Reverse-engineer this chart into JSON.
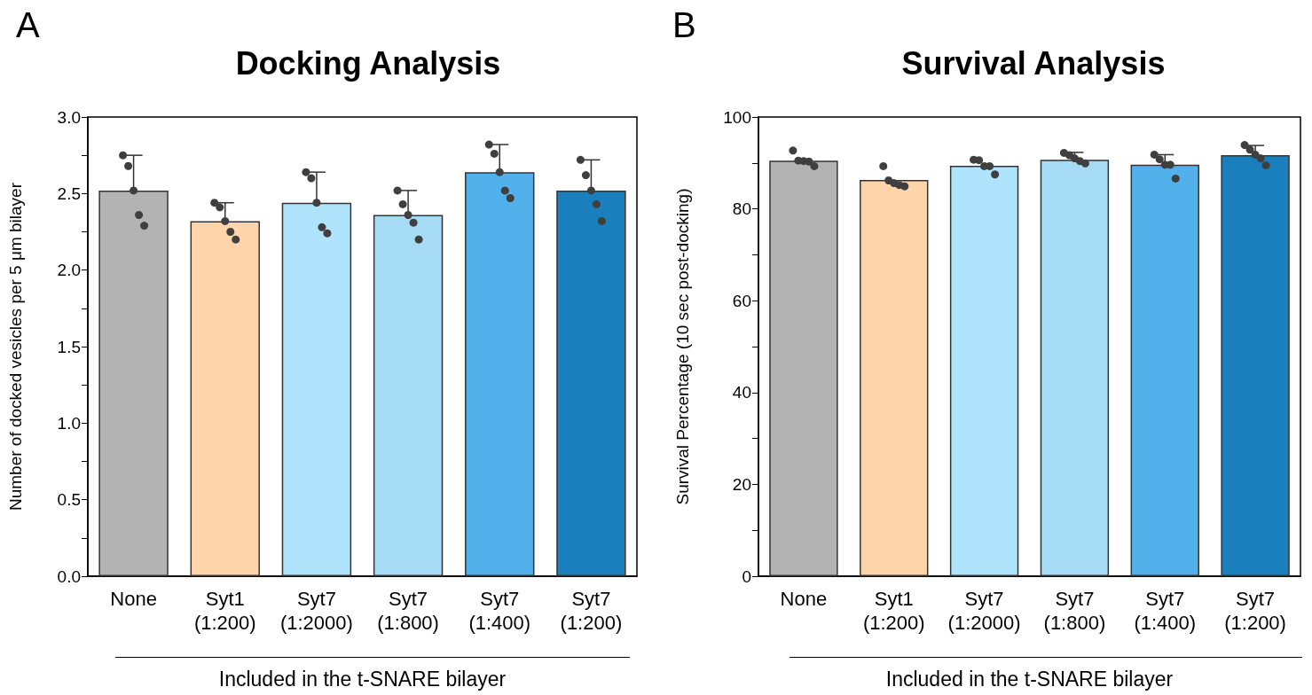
{
  "chart_data": [
    {
      "type": "bar",
      "title": "Docking Analysis",
      "annotations": [
        "A"
      ],
      "xlabel": "Included in the t-SNARE bilayer",
      "ylabel": "Number of docked vesicles per 5 μm bilayer",
      "categories": [
        "None",
        "Syt1\n(1:200)",
        "Syt7\n(1:2000)",
        "Syt7\n(1:800)",
        "Syt7\n(1:400)",
        "Syt7\n(1:200)"
      ],
      "ylim": [
        0,
        3.0
      ],
      "yticks": [
        {
          "value": 0,
          "label": "0.0"
        },
        {
          "value": 0.25,
          "label": null
        },
        {
          "value": 0.5,
          "label": "0.5"
        },
        {
          "value": 0.75,
          "label": null
        },
        {
          "value": 1,
          "label": "1.0"
        },
        {
          "value": 1.25,
          "label": null
        },
        {
          "value": 1.5,
          "label": "1.5"
        },
        {
          "value": 1.75,
          "label": null
        },
        {
          "value": 2,
          "label": "2.0"
        },
        {
          "value": 2.25,
          "label": null
        },
        {
          "value": 2.5,
          "label": "2.5"
        },
        {
          "value": 2.75,
          "label": null
        },
        {
          "value": 3,
          "label": "3.0"
        }
      ],
      "grid": false,
      "series": [
        {
          "colors": [
            "#b3b3b3",
            "#fed5ab",
            "#afe4fc",
            "#a5dbf5",
            "#52b1ea",
            "#1a80bd"
          ],
          "values": [
            2.52,
            2.32,
            2.44,
            2.36,
            2.64,
            2.52
          ],
          "errors": [
            [
              2.52,
              2.75
            ],
            [
              2.32,
              2.44
            ],
            [
              2.44,
              2.64
            ],
            [
              2.36,
              2.52
            ],
            [
              2.64,
              2.82
            ],
            [
              2.52,
              2.72
            ]
          ]
        },
        {
          "type": "scatter",
          "color": "#3f3f3f",
          "marker": "circle",
          "x": [
            "None",
            "None",
            "None",
            "None",
            "None",
            "Syt1\n(1:200)",
            "Syt1\n(1:200)",
            "Syt1\n(1:200)",
            "Syt1\n(1:200)",
            "Syt1\n(1:200)",
            "Syt7\n(1:2000)",
            "Syt7\n(1:2000)",
            "Syt7\n(1:2000)",
            "Syt7\n(1:2000)",
            "Syt7\n(1:2000)",
            "Syt7\n(1:800)",
            "Syt7\n(1:800)",
            "Syt7\n(1:800)",
            "Syt7\n(1:800)",
            "Syt7\n(1:800)",
            "Syt7\n(1:400)",
            "Syt7\n(1:400)",
            "Syt7\n(1:400)",
            "Syt7\n(1:400)",
            "Syt7\n(1:400)",
            "Syt7\n(1:200)",
            "Syt7\n(1:200)",
            "Syt7\n(1:200)",
            "Syt7\n(1:200)",
            "Syt7\n(1:200)"
          ],
          "values": [
            2.75,
            2.68,
            2.52,
            2.36,
            2.29,
            2.44,
            2.41,
            2.32,
            2.25,
            2.2,
            2.64,
            2.6,
            2.44,
            2.28,
            2.24,
            2.52,
            2.43,
            2.36,
            2.31,
            2.2,
            2.82,
            2.76,
            2.64,
            2.52,
            2.47,
            2.72,
            2.62,
            2.52,
            2.43,
            2.32
          ]
        }
      ]
    },
    {
      "type": "bar",
      "title": "Survival Analysis",
      "annotations": [
        "B"
      ],
      "xlabel": "Included in the t-SNARE bilayer",
      "ylabel": "Survival Percentage (10 sec post-docking)",
      "categories": [
        "None",
        "Syt1\n(1:200)",
        "Syt7\n(1:2000)",
        "Syt7\n(1:800)",
        "Syt7\n(1:400)",
        "Syt7\n(1:200)"
      ],
      "ylim": [
        0,
        100
      ],
      "yticks": [
        0,
        {
          "value": 10,
          "label": null
        },
        20,
        {
          "value": 30,
          "label": null
        },
        40,
        {
          "value": 50,
          "label": null
        },
        60,
        {
          "value": 70,
          "label": null
        },
        80,
        {
          "value": 90,
          "label": null
        },
        100
      ],
      "grid": false,
      "series": [
        {
          "colors": [
            "#b3b3b3",
            "#fed5ab",
            "#afe4fc",
            "#a5dbf5",
            "#52b1ea",
            "#1a80bd"
          ],
          "values": [
            90.5,
            86.3,
            89.4,
            90.7,
            89.6,
            91.7
          ],
          "errors": [
            null,
            null,
            null,
            [
              90.7,
              92.3
            ],
            [
              89.6,
              91.8
            ],
            [
              91.7,
              93.8
            ]
          ]
        },
        {
          "type": "scatter",
          "color": "#3f3f3f",
          "marker": "circle",
          "x": [
            "None",
            "None",
            "None",
            "None",
            "None",
            "Syt1\n(1:200)",
            "Syt1\n(1:200)",
            "Syt1\n(1:200)",
            "Syt1\n(1:200)",
            "Syt1\n(1:200)",
            "Syt7\n(1:2000)",
            "Syt7\n(1:2000)",
            "Syt7\n(1:2000)",
            "Syt7\n(1:2000)",
            "Syt7\n(1:2000)",
            "Syt7\n(1:800)",
            "Syt7\n(1:800)",
            "Syt7\n(1:800)",
            "Syt7\n(1:800)",
            "Syt7\n(1:800)",
            "Syt7\n(1:400)",
            "Syt7\n(1:400)",
            "Syt7\n(1:400)",
            "Syt7\n(1:400)",
            "Syt7\n(1:400)",
            "Syt7\n(1:200)",
            "Syt7\n(1:200)",
            "Syt7\n(1:200)",
            "Syt7\n(1:200)",
            "Syt7\n(1:200)"
          ],
          "values": [
            92.7,
            90.5,
            90.4,
            90.3,
            89.3,
            89.3,
            86.2,
            85.6,
            85.2,
            84.9,
            90.7,
            90.6,
            89.3,
            89.3,
            87.5,
            92.2,
            91.7,
            91.0,
            90.4,
            89.9,
            91.8,
            90.8,
            89.6,
            89.6,
            86.6,
            93.9,
            92.9,
            91.8,
            91.0,
            89.5
          ]
        }
      ]
    }
  ]
}
